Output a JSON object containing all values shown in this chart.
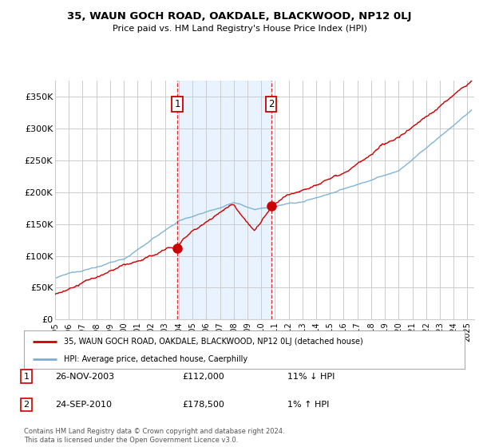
{
  "title": "35, WAUN GOCH ROAD, OAKDALE, BLACKWOOD, NP12 0LJ",
  "subtitle": "Price paid vs. HM Land Registry's House Price Index (HPI)",
  "ylabel_ticks": [
    "£0",
    "£50K",
    "£100K",
    "£150K",
    "£200K",
    "£250K",
    "£300K",
    "£350K"
  ],
  "ytick_values": [
    0,
    50000,
    100000,
    150000,
    200000,
    250000,
    300000,
    350000
  ],
  "ylim": [
    0,
    375000
  ],
  "xlim_start": 1995.0,
  "xlim_end": 2025.5,
  "hpi_color": "#7ab0d4",
  "price_color": "#cc0000",
  "sale1": {
    "date_num": 2003.9,
    "price": 112000,
    "label": "1"
  },
  "sale2": {
    "date_num": 2010.73,
    "price": 178500,
    "label": "2"
  },
  "legend_line1": "35, WAUN GOCH ROAD, OAKDALE, BLACKWOOD, NP12 0LJ (detached house)",
  "legend_line2": "HPI: Average price, detached house, Caerphilly",
  "table_entries": [
    {
      "num": "1",
      "date": "26-NOV-2003",
      "price": "£112,000",
      "change": "11% ↓ HPI"
    },
    {
      "num": "2",
      "date": "24-SEP-2010",
      "price": "£178,500",
      "change": "1% ↑ HPI"
    }
  ],
  "footnote": "Contains HM Land Registry data © Crown copyright and database right 2024.\nThis data is licensed under the Open Government Licence v3.0.",
  "background_color": "#ffffff",
  "plot_bg_color": "#ffffff",
  "grid_color": "#cccccc",
  "shade_color": "#ddeeff"
}
